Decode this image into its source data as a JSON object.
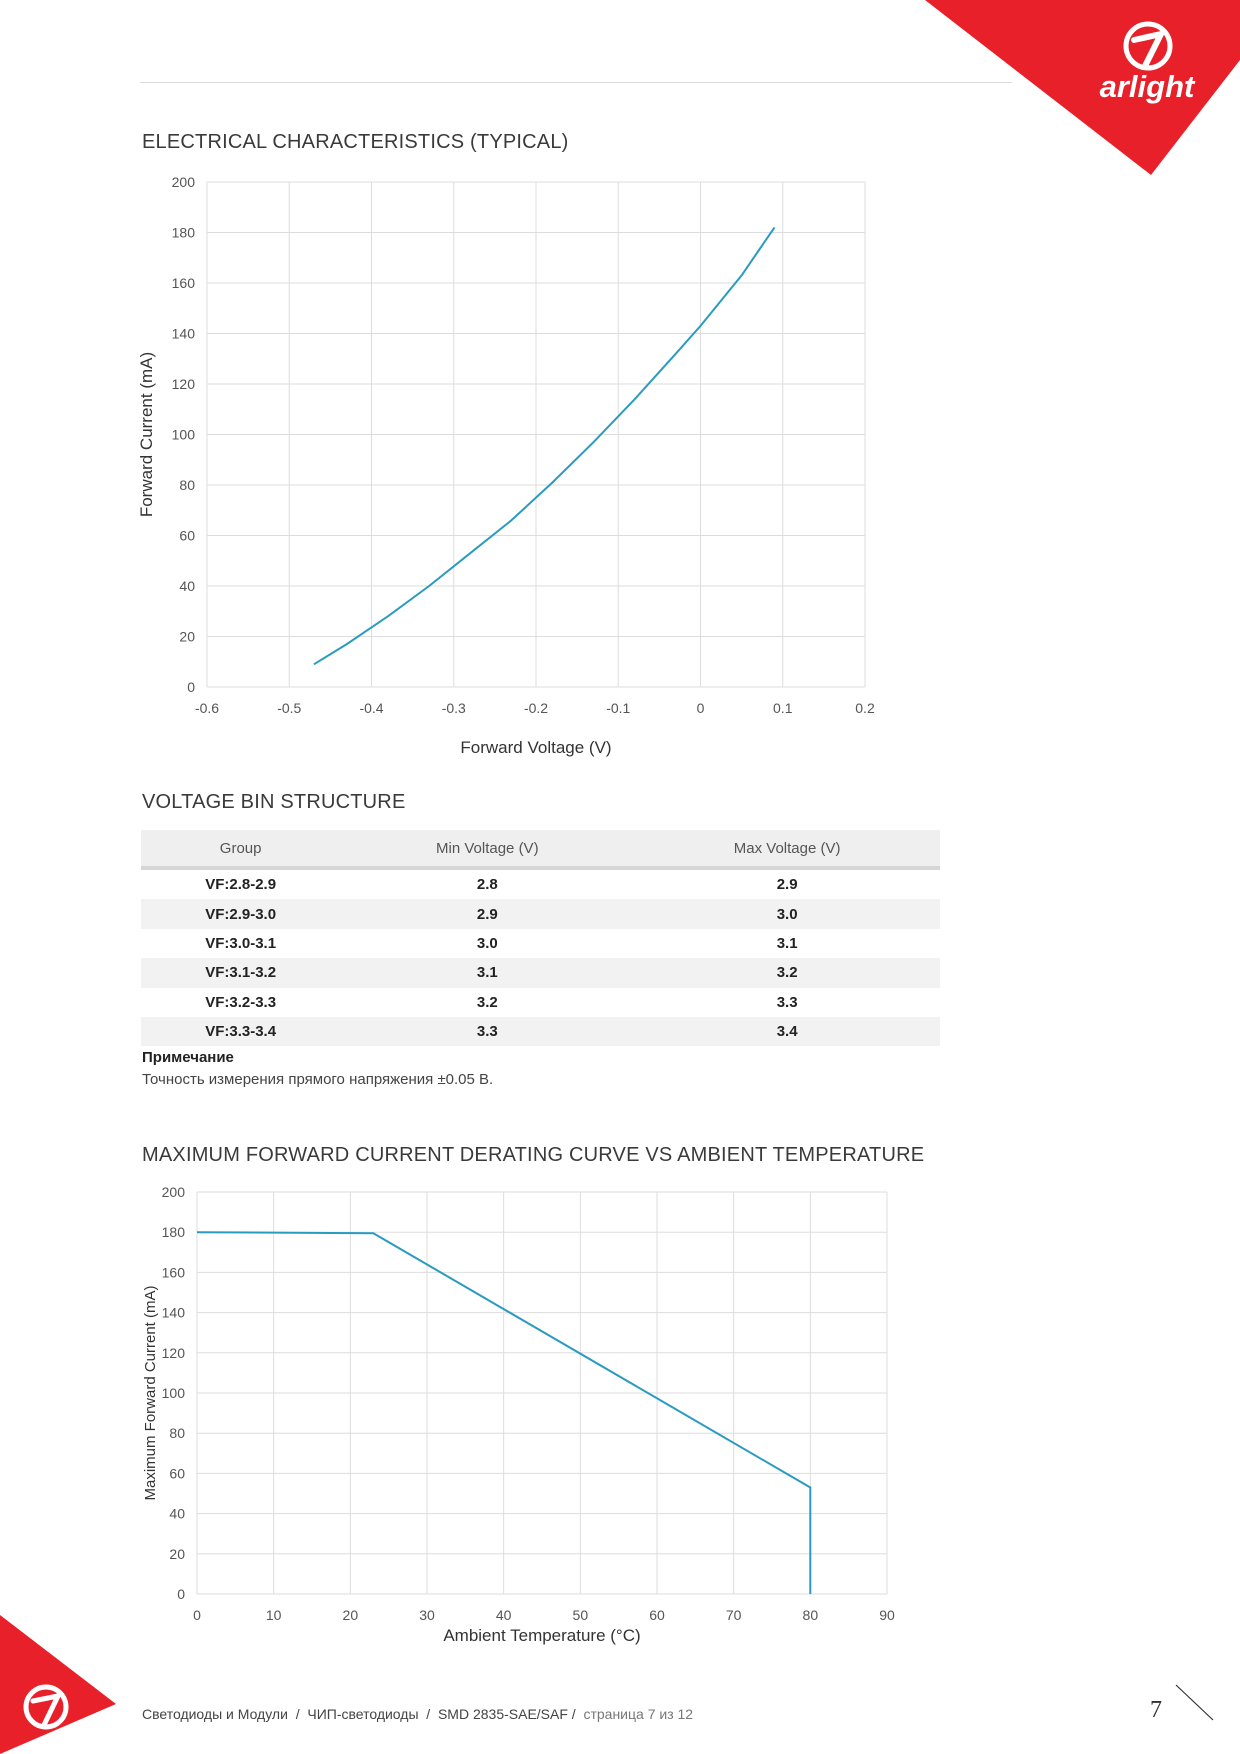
{
  "brand": {
    "logo_text": "arlight",
    "accent_color": "#e8202a"
  },
  "section1": {
    "title": "ELECTRICAL CHARACTERISTICS (TYPICAL)"
  },
  "section2": {
    "title": "VOLTAGE BIN STRUCTURE"
  },
  "section3": {
    "title": "MAXIMUM FORWARD CURRENT DERATING CURVE VS AMBIENT TEMPERATURE"
  },
  "chart_data": [
    {
      "type": "line",
      "xlabel": "Forward Voltage (V)",
      "ylabel": "Forward Current (mA)",
      "xlim": [
        -0.6,
        0.2
      ],
      "ylim": [
        0,
        200
      ],
      "x_ticks": [
        "-0.6",
        "-0.5",
        "-0.4",
        "-0.3",
        "-0.2",
        "-0.1",
        "0",
        "0.1",
        "0.2"
      ],
      "y_ticks": [
        "0",
        "20",
        "40",
        "60",
        "80",
        "100",
        "120",
        "140",
        "160",
        "180",
        "200"
      ],
      "grid": true,
      "line_color": "#2a9bc0",
      "x": [
        -0.47,
        -0.43,
        -0.38,
        -0.33,
        -0.28,
        -0.23,
        -0.18,
        -0.13,
        -0.08,
        -0.03,
        0.0,
        0.05,
        0.09
      ],
      "y": [
        9,
        17,
        28,
        40,
        53,
        66,
        81,
        97,
        114,
        132,
        143,
        163,
        182
      ]
    },
    {
      "type": "line",
      "xlabel": "Ambient Temperature (°C)",
      "ylabel": "Maximum Forward Current (mA)",
      "xlim": [
        0,
        90
      ],
      "ylim": [
        0,
        200
      ],
      "x_ticks": [
        "0",
        "10",
        "20",
        "30",
        "40",
        "50",
        "60",
        "70",
        "80",
        "90"
      ],
      "y_ticks": [
        "0",
        "20",
        "40",
        "60",
        "80",
        "100",
        "120",
        "140",
        "160",
        "180",
        "200"
      ],
      "grid": true,
      "line_color": "#2a9bc0",
      "x": [
        0,
        23,
        80,
        80
      ],
      "y": [
        180,
        179.5,
        53,
        0
      ]
    }
  ],
  "table": {
    "headers": [
      "Group",
      "Min Voltage (V)",
      "Max Voltage (V)"
    ],
    "rows": [
      [
        "VF:2.8-2.9",
        "2.8",
        "2.9"
      ],
      [
        "VF:2.9-3.0",
        "2.9",
        "3.0"
      ],
      [
        "VF:3.0-3.1",
        "3.0",
        "3.1"
      ],
      [
        "VF:3.1-3.2",
        "3.1",
        "3.2"
      ],
      [
        "VF:3.2-3.3",
        "3.2",
        "3.3"
      ],
      [
        "VF:3.3-3.4",
        "3.3",
        "3.4"
      ]
    ]
  },
  "note": {
    "title": "Примечание",
    "text": "Точность измерения прямого напряжения ±0.05 В."
  },
  "footer": {
    "crumb1": "Светодиоды и Модули",
    "crumb2": "ЧИП-светодиоды",
    "crumb3": "SMD 2835-SAE/SAF",
    "sep": "/",
    "page_info": "страница 7 из 12",
    "page_number": "7"
  }
}
